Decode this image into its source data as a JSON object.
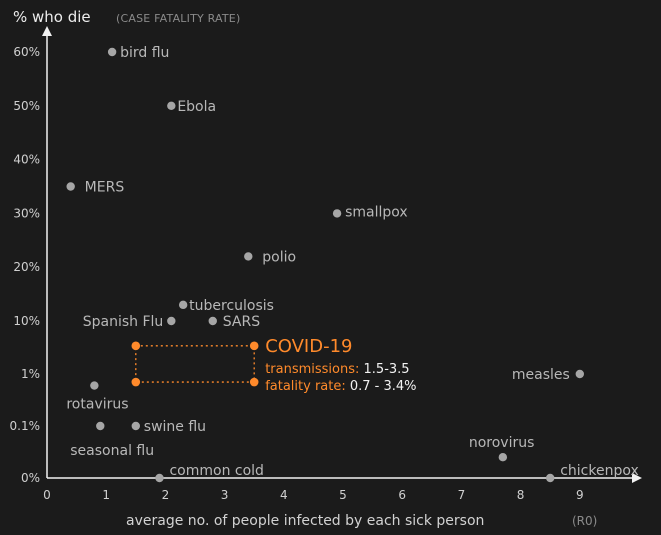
{
  "chart_data": {
    "type": "scatter",
    "title": "% who die",
    "subtitle": "(CASE FATALITY RATE)",
    "xlabel": "average no. of people infected by each sick person",
    "xlabel_unit": "(R0)",
    "xlim": [
      0,
      10
    ],
    "x_ticks": [
      "0",
      "1",
      "2",
      "3",
      "4",
      "5",
      "6",
      "7",
      "8",
      "9"
    ],
    "y_ticks": [
      "0%",
      "0.1%",
      "1%",
      "10%",
      "20%",
      "30%",
      "40%",
      "50%",
      "60%"
    ],
    "y_scale": "piecewise (0%, 0.1%, 1%, 10% evenly spaced; then linear 10%-60%)",
    "grid": false,
    "points": [
      {
        "name": "bird flu",
        "x": 1.1,
        "y": 60
      },
      {
        "name": "Ebola",
        "x": 2.1,
        "y": 50
      },
      {
        "name": "MERS",
        "x": 0.4,
        "y": 35
      },
      {
        "name": "smallpox",
        "x": 4.9,
        "y": 30
      },
      {
        "name": "polio",
        "x": 3.4,
        "y": 22
      },
      {
        "name": "tuberculosis",
        "x": 2.3,
        "y": 13
      },
      {
        "name": "Spanish Flu",
        "x": 2.1,
        "y": 10
      },
      {
        "name": "SARS",
        "x": 2.8,
        "y": 10
      },
      {
        "name": "measles",
        "x": 9.0,
        "y": 1.0
      },
      {
        "name": "rotavirus",
        "x": 0.8,
        "y": 0.6
      },
      {
        "name": "swine flu",
        "x": 1.5,
        "y": 0.1
      },
      {
        "name": "seasonal flu",
        "x": 0.9,
        "y": 0.1
      },
      {
        "name": "norovirus",
        "x": 7.7,
        "y": 0.04
      },
      {
        "name": "chickenpox",
        "x": 8.5,
        "y": 0.0
      },
      {
        "name": "common cold",
        "x": 1.9,
        "y": 0.0
      }
    ],
    "highlight": {
      "name": "COVID-19",
      "x_range": [
        1.5,
        3.5
      ],
      "y_range": [
        0.7,
        3.4
      ],
      "lines": [
        {
          "key": "transmissions:",
          "value": "1.5-3.5"
        },
        {
          "key": "fatality rate:",
          "value": "0.7 - 3.4%"
        }
      ]
    },
    "colors": {
      "background": "#1b1b1b",
      "axis": "#f2f2f2",
      "point": "#a6a6a6",
      "label": "#b8b8b8",
      "highlight": "#ff8a2b"
    }
  }
}
